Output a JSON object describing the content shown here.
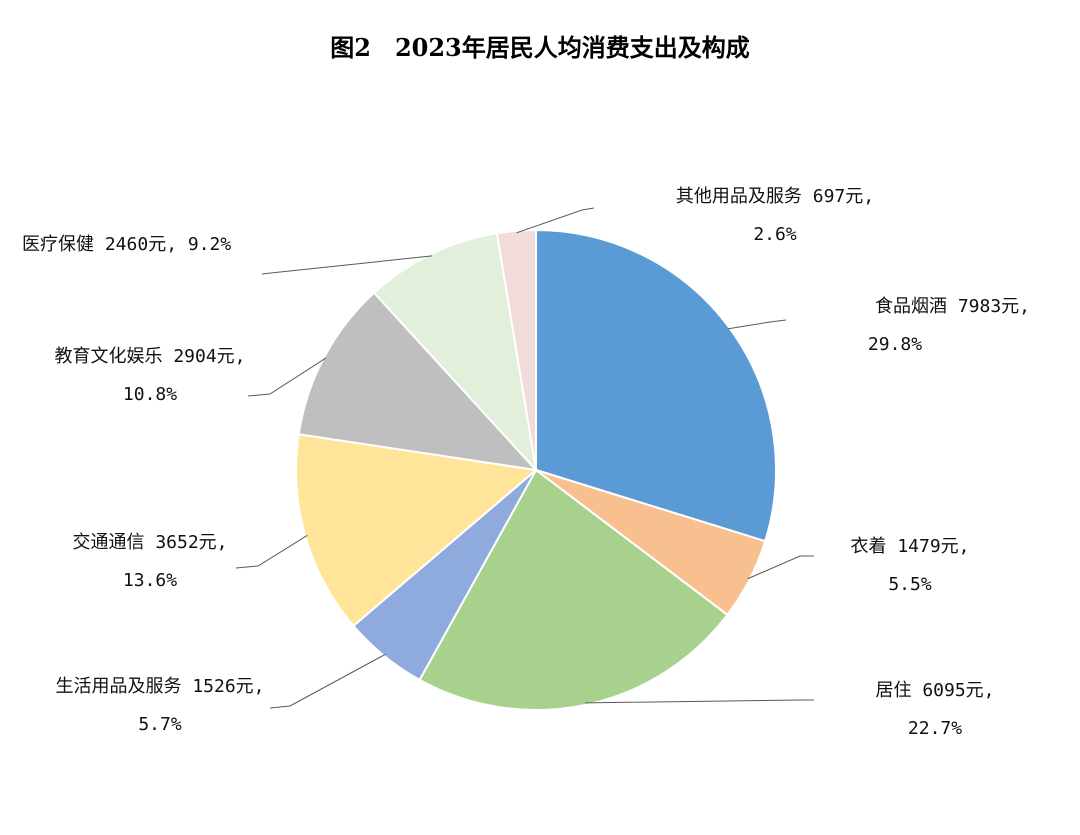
{
  "title": "图2　2023年居民人均消费支出及构成",
  "chart_data": {
    "type": "pie",
    "title": "图2　2023年居民人均消费支出及构成",
    "unit": "元",
    "slices": [
      {
        "name": "食品烟酒",
        "value": 7983,
        "percent": "29.8%",
        "color": "#5B9BD5",
        "label_value": "7983元,"
      },
      {
        "name": "衣着",
        "value": 1479,
        "percent": "5.5%",
        "color": "#F8C08F",
        "label_value": "1479元,"
      },
      {
        "name": "居住",
        "value": 6095,
        "percent": "22.7%",
        "color": "#A9D18E",
        "label_value": "6095元,"
      },
      {
        "name": "生活用品及服务",
        "value": 1526,
        "percent": "5.7%",
        "color": "#8FAADC",
        "label_value": "1526元,"
      },
      {
        "name": "交通通信",
        "value": 3652,
        "percent": "13.6%",
        "color": "#FFE499",
        "label_value": "3652元,"
      },
      {
        "name": "教育文化娱乐",
        "value": 2904,
        "percent": "10.8%",
        "color": "#BFBFBF",
        "label_value": "2904元,"
      },
      {
        "name": "医疗保健",
        "value": 2460,
        "percent": "9.2%",
        "color": "#E2EFDA",
        "label_value": "2460元, 9.2%"
      },
      {
        "name": "其他用品及服务",
        "value": 697,
        "percent": "2.6%",
        "color": "#F2DCDB",
        "label_value": "697元,"
      }
    ]
  }
}
